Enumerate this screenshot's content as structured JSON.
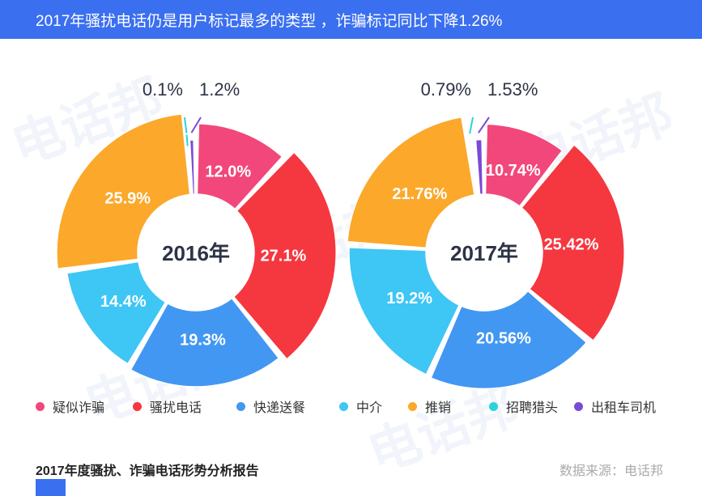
{
  "header": {
    "title": "2017年骚扰电话仍是用户标记最多的类型 ，诈骗标记同比下降1.26%"
  },
  "watermark": "电话邦",
  "chart_data": [
    {
      "type": "pie",
      "center_label": "2016年",
      "categories": [
        "疑似诈骗",
        "骚扰电话",
        "快递送餐",
        "中介",
        "推销",
        "招聘猎头",
        "出租车司机"
      ],
      "values": [
        12.0,
        27.1,
        19.3,
        14.4,
        25.9,
        0.1,
        1.2
      ],
      "labels": [
        "12.0%",
        "27.1%",
        "19.3%",
        "14.4%",
        "25.9%",
        "0.1%",
        "1.2%"
      ]
    },
    {
      "type": "pie",
      "center_label": "2017年",
      "categories": [
        "疑似诈骗",
        "骚扰电话",
        "快递送餐",
        "中介",
        "推销",
        "招聘猎头",
        "出租车司机"
      ],
      "values": [
        10.74,
        25.42,
        20.56,
        19.2,
        21.76,
        0.79,
        1.53
      ],
      "labels": [
        "10.74%",
        "25.42%",
        "20.56%",
        "19.2%",
        "21.76%",
        "0.79%",
        "1.53%"
      ]
    }
  ],
  "legend": [
    {
      "label": "疑似诈骗",
      "color": "#f2477a"
    },
    {
      "label": "骚扰电话",
      "color": "#f5373f"
    },
    {
      "label": "快递送餐",
      "color": "#4297f2"
    },
    {
      "label": "中介",
      "color": "#3ec6f5"
    },
    {
      "label": "推销",
      "color": "#fba82b"
    },
    {
      "label": "招聘猎头",
      "color": "#2ad3db"
    },
    {
      "label": "出租车司机",
      "color": "#7a4ad9"
    }
  ],
  "footer": {
    "title": "2017年度骚扰、诈骗电话形势分析报告",
    "source": "数据来源：电话邦"
  }
}
